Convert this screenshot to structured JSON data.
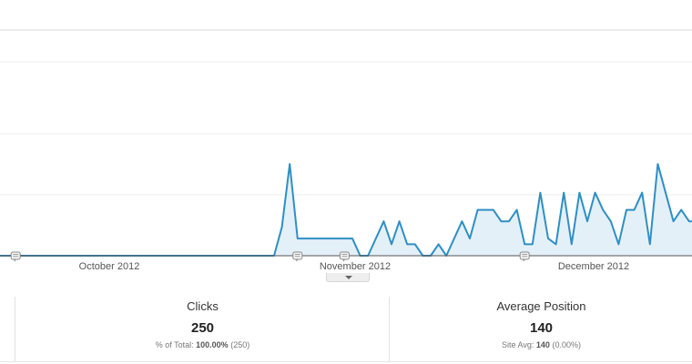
{
  "chart_data": {
    "type": "area",
    "x_labels": [
      "October 2012",
      "November 2012",
      "December 2012"
    ],
    "y": [
      0,
      0,
      0,
      0,
      0,
      0,
      0,
      0,
      0,
      0,
      0,
      0,
      0,
      0,
      0,
      0,
      0,
      0,
      0,
      0,
      0,
      0,
      0,
      0,
      0,
      0,
      0,
      0,
      0,
      0,
      0,
      0,
      0,
      0,
      0,
      0,
      0.5,
      1.6,
      0.3,
      0.3,
      0.3,
      0.3,
      0.3,
      0.3,
      0.3,
      0.3,
      0,
      0,
      0.3,
      0.6,
      0.2,
      0.6,
      0.2,
      0.2,
      0,
      0,
      0.2,
      0,
      0.3,
      0.6,
      0.3,
      0.8,
      0.8,
      0.8,
      0.6,
      0.6,
      0.8,
      0.2,
      0.2,
      1.1,
      0.3,
      0.2,
      1.1,
      0.2,
      1.1,
      0.6,
      1.1,
      0.8,
      0.6,
      0.2,
      0.8,
      0.8,
      1.1,
      0.2,
      1.6,
      1.1,
      0.6,
      0.8,
      0.6,
      0.6,
      0.6,
      0.6
    ],
    "annotation_markers": [
      2,
      38,
      44,
      67
    ],
    "line_color": "#2f8fc4",
    "fill_color": "#e4f0f8"
  },
  "scorecards": [
    {
      "label": "Clicks",
      "value": "250",
      "sub_prefix": "% of Total:",
      "sub_value": "100.00%",
      "sub_suffix": "(250)"
    },
    {
      "label": "Average Position",
      "value": "140",
      "sub_prefix": "Site Avg:",
      "sub_value": "140",
      "sub_suffix": "(0.00%)"
    }
  ]
}
